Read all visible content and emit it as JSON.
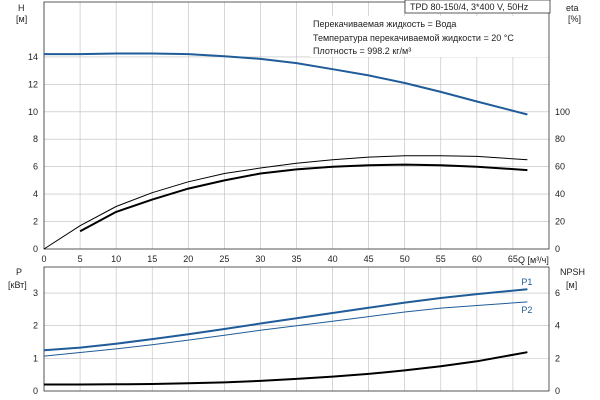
{
  "header": {
    "product": "TPD 80-150/4, 3*400 V, 50Hz",
    "info_lines": [
      "Перекачиваемая жидкость = Вода",
      "Температура перекачиваемой жидкости = 20 °C",
      "Плотность = 998.2 кг/м³"
    ]
  },
  "colors": {
    "head_curve": "#1f5c99",
    "power_curve": "#1f5c99",
    "efficiency_curve": "#000000",
    "npsh_curve": "#000000",
    "grid": "#bdbdbd"
  },
  "chart_data": [
    {
      "type": "line",
      "panel": "top",
      "x": {
        "label": "Q [м³/ч]",
        "range": [
          0,
          70
        ],
        "ticks": [
          0,
          5,
          10,
          15,
          20,
          25,
          30,
          35,
          40,
          45,
          50,
          55,
          60,
          65
        ]
      },
      "y_left": {
        "label_line1": "H",
        "label_line2": "[м]",
        "range": [
          0,
          18
        ],
        "ticks": [
          0,
          2,
          4,
          6,
          8,
          10,
          12,
          14
        ]
      },
      "y_right": {
        "label_line1": "eta",
        "label_line2": "[%]",
        "range": [
          0,
          180
        ],
        "ticks": [
          0,
          20,
          40,
          60,
          80,
          100
        ]
      },
      "grid": true,
      "series": [
        {
          "axis": "left",
          "x": [
            0,
            5,
            10,
            15,
            20,
            25,
            30,
            35,
            40,
            45,
            50,
            55,
            60,
            67
          ],
          "y": [
            14.2,
            14.2,
            14.25,
            14.25,
            14.2,
            14.05,
            13.85,
            13.55,
            13.1,
            12.65,
            12.1,
            11.45,
            10.75,
            9.8
          ]
        },
        {
          "axis": "right",
          "x": [
            0,
            5,
            10,
            15,
            20,
            25,
            30,
            35,
            40,
            45,
            50,
            55,
            60,
            67
          ],
          "y": [
            0,
            17,
            31,
            41,
            49,
            55,
            59,
            62.5,
            65,
            67,
            68,
            68,
            67.5,
            65
          ]
        },
        {
          "axis": "right",
          "x": [
            5,
            10,
            15,
            20,
            25,
            30,
            35,
            40,
            45,
            50,
            55,
            60,
            67
          ],
          "y": [
            13,
            27,
            36,
            44,
            50,
            55,
            58,
            60,
            61,
            61.5,
            61,
            60,
            57.5
          ]
        }
      ]
    },
    {
      "type": "line",
      "panel": "bottom",
      "x": {
        "range": [
          0,
          70
        ],
        "ticks": [
          0,
          5,
          10,
          15,
          20,
          25,
          30,
          35,
          40,
          45,
          50,
          55,
          60,
          65
        ]
      },
      "y_left": {
        "label_line1": "P",
        "label_line2": "[кВт]",
        "range": [
          0,
          3.8
        ],
        "ticks": [
          0,
          1,
          2,
          3
        ]
      },
      "y_right": {
        "label_line1": "NPSH",
        "label_line2": "[м]",
        "range": [
          0,
          7.6
        ],
        "ticks": [
          0,
          2,
          4,
          6
        ]
      },
      "grid": true,
      "series": [
        {
          "name": "P1",
          "axis": "left",
          "x": [
            0,
            5,
            10,
            15,
            20,
            25,
            30,
            35,
            40,
            45,
            50,
            55,
            60,
            67
          ],
          "y": [
            1.25,
            1.33,
            1.45,
            1.59,
            1.74,
            1.9,
            2.07,
            2.23,
            2.39,
            2.55,
            2.71,
            2.85,
            2.97,
            3.12
          ]
        },
        {
          "name": "P2",
          "axis": "left",
          "x": [
            0,
            5,
            10,
            15,
            20,
            25,
            30,
            35,
            40,
            45,
            50,
            55,
            60,
            67
          ],
          "y": [
            1.07,
            1.18,
            1.29,
            1.42,
            1.56,
            1.71,
            1.86,
            2.0,
            2.14,
            2.28,
            2.42,
            2.54,
            2.62,
            2.73
          ]
        },
        {
          "axis": "right",
          "x": [
            0,
            5,
            10,
            15,
            20,
            25,
            30,
            35,
            40,
            45,
            50,
            55,
            60,
            67
          ],
          "y": [
            0.4,
            0.4,
            0.41,
            0.43,
            0.47,
            0.53,
            0.62,
            0.74,
            0.88,
            1.05,
            1.26,
            1.52,
            1.82,
            2.38
          ]
        }
      ]
    }
  ]
}
